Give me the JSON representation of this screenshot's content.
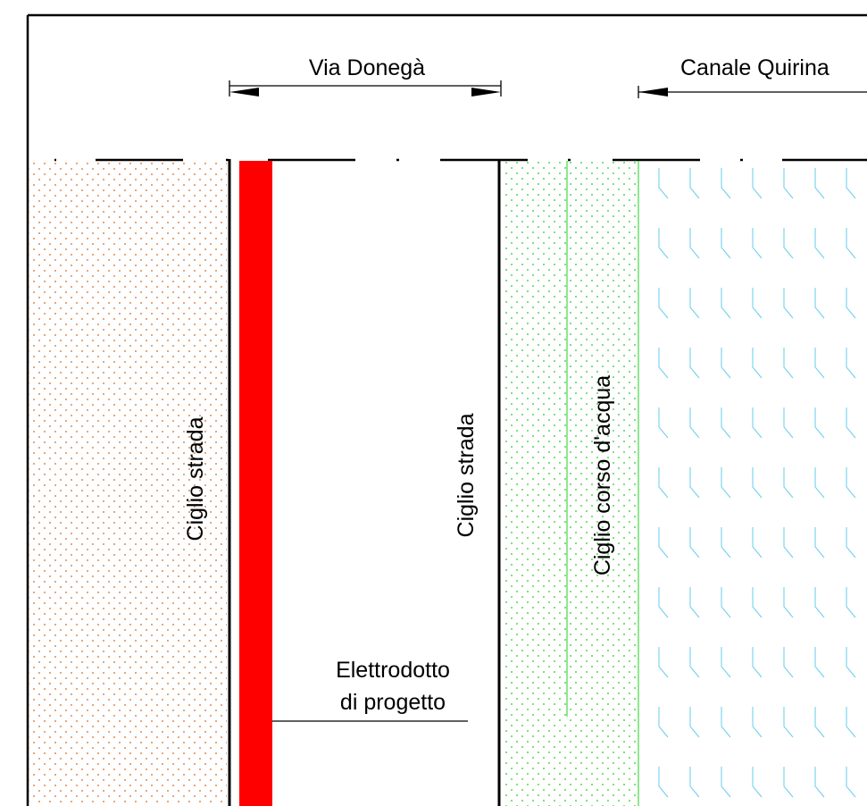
{
  "labels": {
    "road_name": "Via Donegà",
    "canal_name": "Canale Quirina",
    "road_edge_left": "Ciglio strada",
    "road_edge_right": "Ciglio strada",
    "watercourse_edge": "Ciglio corso d'acqua",
    "power_line_line1": "Elettrodotto",
    "power_line_line2": "di progetto"
  },
  "colors": {
    "power_line": "#ff0000",
    "soil_hatch": "#d2691e",
    "vegetation_hatch": "#22cc22",
    "water_hatch": "#66ccee",
    "lines": "#000000"
  }
}
